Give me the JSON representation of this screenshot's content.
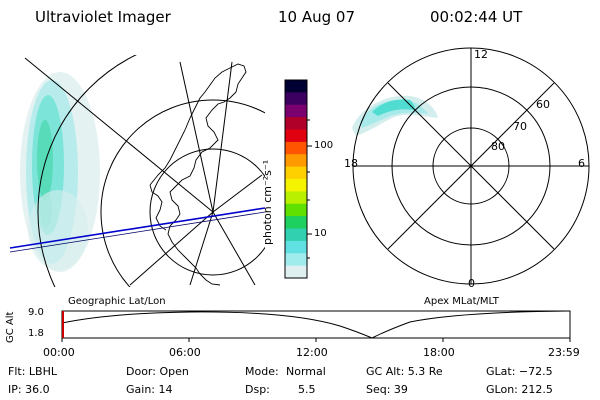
{
  "header": {
    "instrument": "Ultraviolet Imager",
    "date": "10 Aug 07",
    "time": "00:02:44 UT"
  },
  "colorbar": {
    "label": "photon cm⁻²s⁻¹",
    "ticks": [
      "100",
      "10"
    ],
    "colors": [
      "#000033",
      "#3b0060",
      "#7a0070",
      "#b0002a",
      "#e00010",
      "#ff5500",
      "#ff9900",
      "#ffd000",
      "#f4f400",
      "#b8f000",
      "#60e000",
      "#1ed060",
      "#30d0b0",
      "#60e0e0",
      "#a0ecec",
      "#e0f0f0"
    ]
  },
  "left_map": {
    "label": "Geographic Lat/Lon"
  },
  "right_map": {
    "label": "Apex MLat/MLT",
    "mlt_labels": {
      "top": "12",
      "left": "18",
      "right": "6",
      "bottom": "0"
    },
    "lat_labels": [
      "60",
      "70",
      "80"
    ]
  },
  "altitude_plot": {
    "ylabel": "GC Alt",
    "yticks": [
      "9.0",
      "1.8"
    ],
    "xticks": [
      "00:00",
      "06:00",
      "12:00",
      "18:00",
      "23:59"
    ]
  },
  "status": {
    "flt": "Flt: LBHL",
    "door": "Door: Open",
    "mode_label": "Mode:",
    "mode_value": "Normal",
    "gc_alt": "GC Alt: 5.3 Re",
    "glat": "GLat: −72.5",
    "ip": "IP: 36.0",
    "gain": "Gain: 14",
    "dsp_label": "Dsp:",
    "dsp_value": "5.5",
    "seq": "Seq: 39",
    "glon": "GLon: 212.5"
  }
}
